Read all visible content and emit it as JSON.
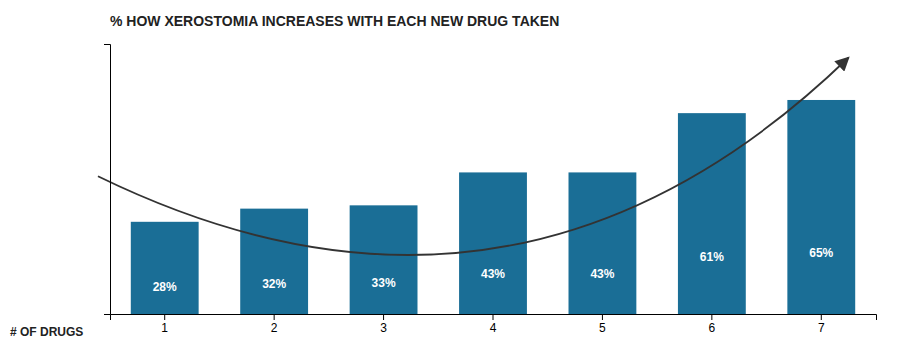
{
  "chart_data": {
    "type": "bar",
    "title": "% HOW XEROSTOMIA INCREASES WITH EACH NEW DRUG TAKEN",
    "xlabel": "# OF DRUGS",
    "categories": [
      "1",
      "2",
      "3",
      "4",
      "5",
      "6",
      "7"
    ],
    "values": [
      28,
      32,
      33,
      43,
      43,
      61,
      65
    ],
    "value_labels": [
      "28%",
      "32%",
      "33%",
      "43%",
      "43%",
      "61%",
      "65%"
    ],
    "data_labels": true,
    "color": "#1a6e96",
    "ylim": [
      0,
      82
    ],
    "grid": false,
    "tick_labels": "x"
  }
}
